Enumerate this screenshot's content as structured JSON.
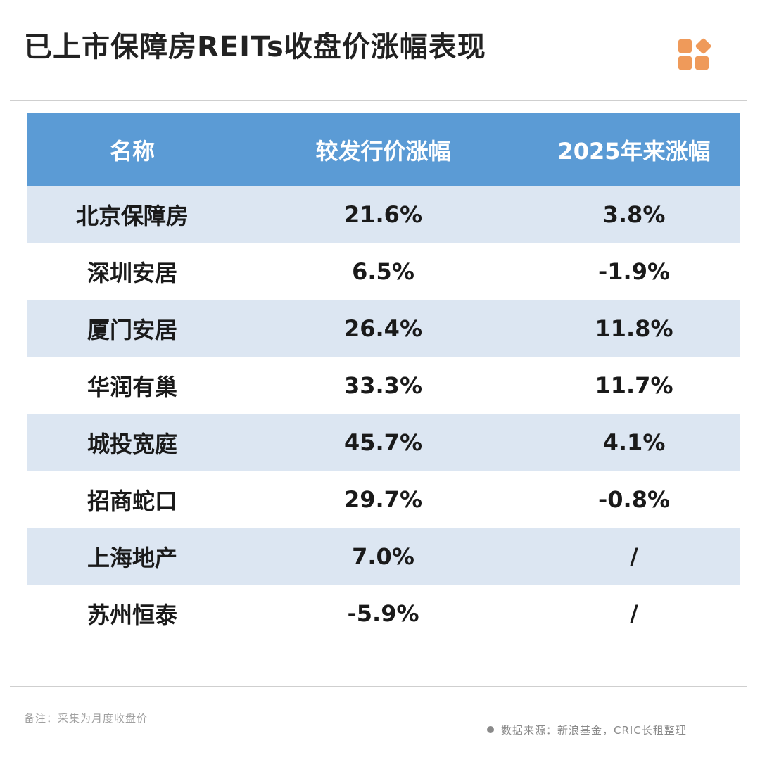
{
  "title": "已上市保障房REITs收盘价涨幅表现",
  "chart_data": {
    "type": "table",
    "columns": [
      "名称",
      "较发行价涨幅",
      "2025年来涨幅"
    ],
    "rows": [
      {
        "name": "北京保障房",
        "since_issue": "21.6%",
        "ytd_2025": "3.8%",
        "trend": "pos"
      },
      {
        "name": "深圳安居",
        "since_issue": "6.5%",
        "ytd_2025": "-1.9%",
        "trend": "neg"
      },
      {
        "name": "厦门安居",
        "since_issue": "26.4%",
        "ytd_2025": "11.8%",
        "trend": "pos"
      },
      {
        "name": "华润有巢",
        "since_issue": "33.3%",
        "ytd_2025": "11.7%",
        "trend": "pos"
      },
      {
        "name": "城投宽庭",
        "since_issue": "45.7%",
        "ytd_2025": "4.1%",
        "trend": "pos"
      },
      {
        "name": "招商蛇口",
        "since_issue": "29.7%",
        "ytd_2025": "-0.8%",
        "trend": "neg"
      },
      {
        "name": "上海地产",
        "since_issue": "7.0%",
        "ytd_2025": "/",
        "trend": "na"
      },
      {
        "name": "苏州恒泰",
        "since_issue": "-5.9%",
        "ytd_2025": "/",
        "trend": "na"
      }
    ]
  },
  "colors": {
    "header_bg": "#5b9bd5",
    "row_alt_bg": "#dce6f2",
    "positive": "#e3161d",
    "negative": "#1ea04b",
    "logo": "#ef9a5a"
  },
  "logo_icon": "four-square-logo-icon",
  "footnote": "备注：采集为月度收盘价",
  "source": "数据来源：新浪基金，CRIC长租整理"
}
